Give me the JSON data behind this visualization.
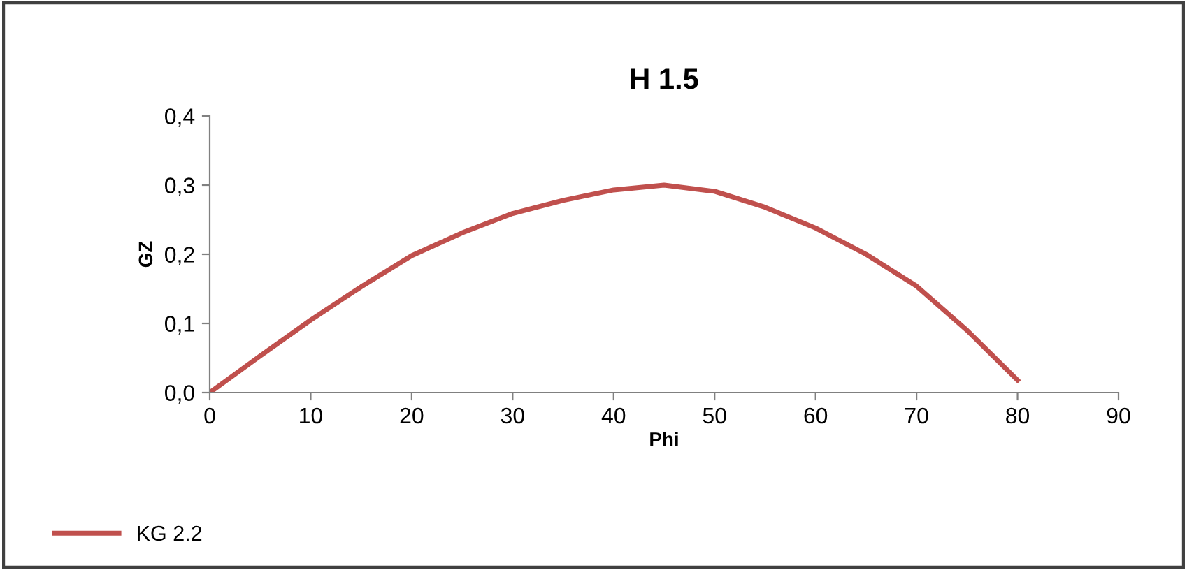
{
  "chart_data": {
    "type": "line",
    "title": "H 1.5",
    "xlabel": "Phi",
    "ylabel": "GZ",
    "series": [
      {
        "name": "KG 2.2",
        "color": "#c0504d",
        "x": [
          0,
          5,
          10,
          15,
          20,
          25,
          30,
          35,
          40,
          45,
          50,
          55,
          60,
          65,
          70,
          75,
          80
        ],
        "values": [
          0,
          0.053,
          0.105,
          0.153,
          0.198,
          0.231,
          0.259,
          0.278,
          0.293,
          0.3,
          0.291,
          0.268,
          0.238,
          0.2,
          0.154,
          0.09,
          0.018
        ]
      }
    ],
    "xlim": [
      0,
      90
    ],
    "xticks": [
      0,
      10,
      20,
      30,
      40,
      50,
      60,
      70,
      80,
      90
    ],
    "ylim": [
      0,
      0.4
    ],
    "yticks": [
      {
        "value": 0,
        "label": "0,0"
      },
      {
        "value": 0.1,
        "label": "0,1"
      },
      {
        "value": 0.2,
        "label": "0,2"
      },
      {
        "value": 0.3,
        "label": "0,3"
      },
      {
        "value": 0.4,
        "label": "0,4"
      }
    ],
    "grid": false,
    "legend": "bottom left",
    "marker": "none",
    "line_style": "solid"
  }
}
